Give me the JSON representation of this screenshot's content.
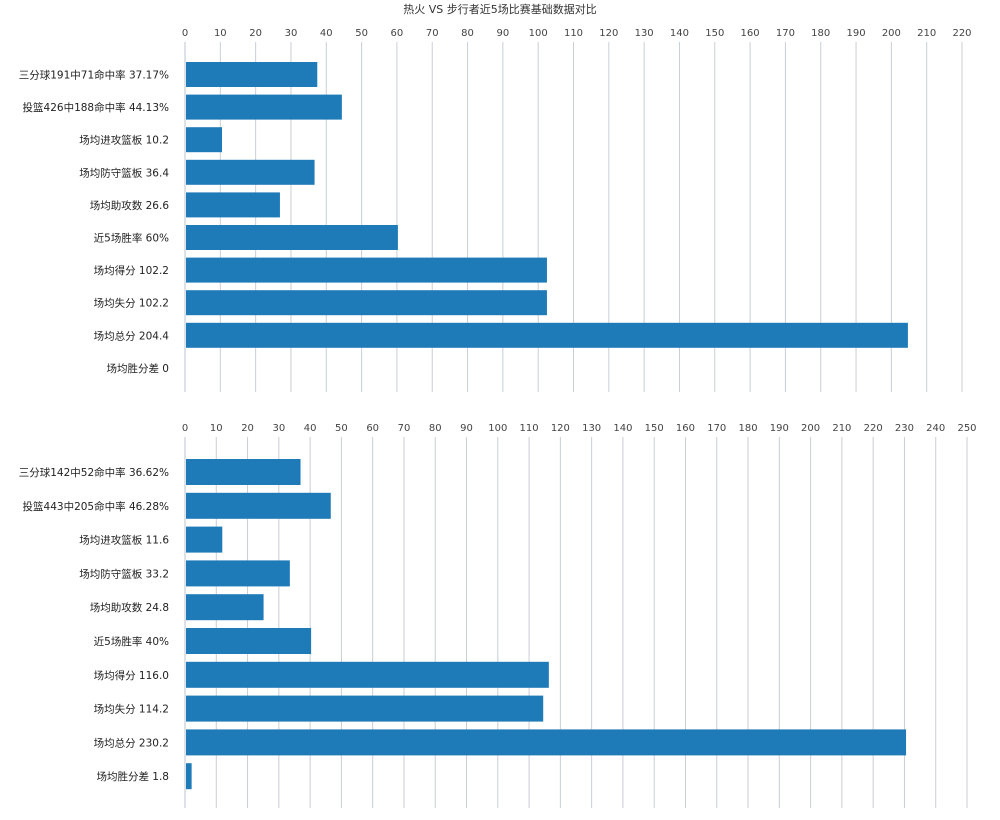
{
  "title": "热火 VS 步行者近5场比赛基础数据对比",
  "colors": {
    "bar": "#1f7bb8",
    "grid": "#c9ced6",
    "axis": "#b9c4cf",
    "text": "#222222"
  },
  "chart_data": [
    {
      "type": "bar",
      "orientation": "horizontal",
      "xlim": [
        0,
        220
      ],
      "xticks": [
        0,
        10,
        20,
        30,
        40,
        50,
        60,
        70,
        80,
        90,
        100,
        110,
        120,
        130,
        140,
        150,
        160,
        170,
        180,
        190,
        200,
        210,
        220
      ],
      "categories": [
        "三分球191中71命中率 37.17%",
        "投篮426中188命中率 44.13%",
        "场均进攻篮板 10.2",
        "场均防守篮板 36.4",
        "场均助攻数 26.6",
        "近5场胜率 60%",
        "场均得分 102.2",
        "场均失分 102.2",
        "场均总分 204.4",
        "场均胜分差 0"
      ],
      "values": [
        37.17,
        44.13,
        10.2,
        36.4,
        26.6,
        60,
        102.2,
        102.2,
        204.4,
        0
      ],
      "grid": true,
      "legend": "none"
    },
    {
      "type": "bar",
      "orientation": "horizontal",
      "xlim": [
        0,
        250
      ],
      "xticks": [
        0,
        10,
        20,
        30,
        40,
        50,
        60,
        70,
        80,
        90,
        100,
        110,
        120,
        130,
        140,
        150,
        160,
        170,
        180,
        190,
        200,
        210,
        220,
        230,
        240,
        250
      ],
      "categories": [
        "三分球142中52命中率 36.62%",
        "投篮443中205命中率 46.28%",
        "场均进攻篮板 11.6",
        "场均防守篮板 33.2",
        "场均助攻数 24.8",
        "近5场胜率 40%",
        "场均得分 116.0",
        "场均失分 114.2",
        "场均总分 230.2",
        "场均胜分差 1.8"
      ],
      "values": [
        36.62,
        46.28,
        11.6,
        33.2,
        24.8,
        40,
        116.0,
        114.2,
        230.2,
        1.8
      ],
      "grid": true,
      "legend": "none"
    }
  ]
}
